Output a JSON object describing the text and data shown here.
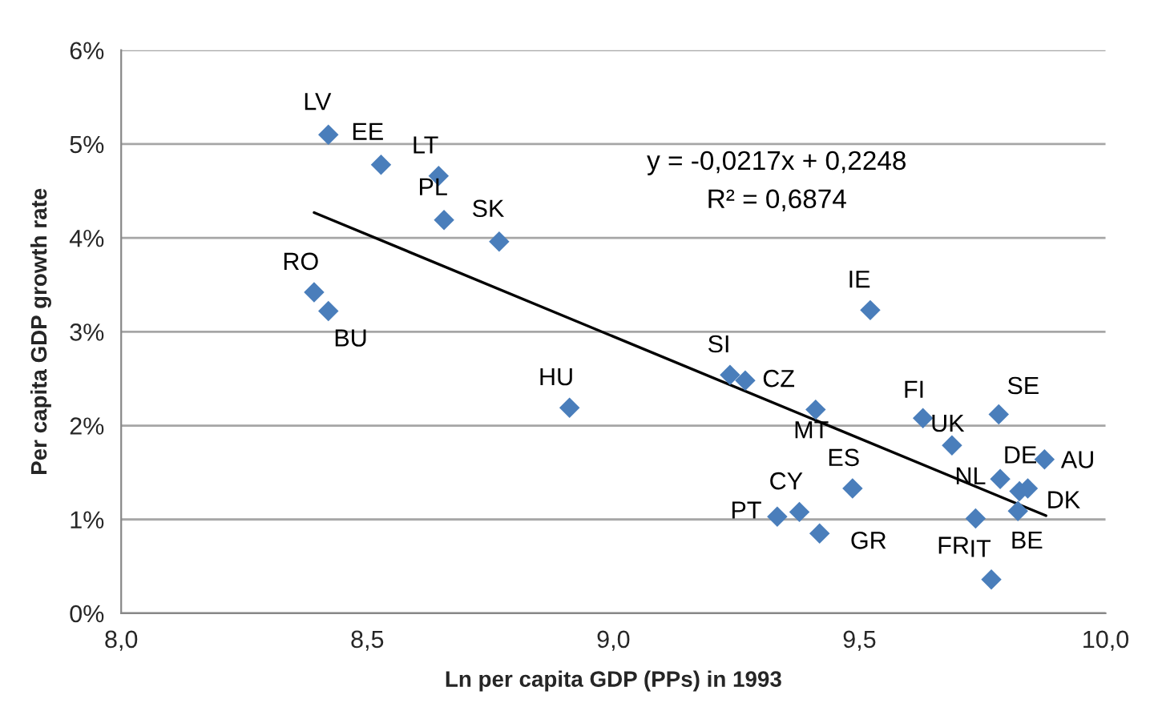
{
  "chart_data": {
    "type": "scatter",
    "xlabel": "Ln per capita GDP (PPs) in 1993",
    "ylabel": "Per capita GDP growth rate",
    "xlim": [
      8.0,
      10.0
    ],
    "xticks": [
      {
        "value": 8.0,
        "label": "8,0"
      },
      {
        "value": 8.5,
        "label": "8,5"
      },
      {
        "value": 9.0,
        "label": "9,0"
      },
      {
        "value": 9.5,
        "label": "9,5"
      },
      {
        "value": 10.0,
        "label": "10,0"
      }
    ],
    "ylim": [
      0,
      6
    ],
    "yticks": [
      {
        "value": 0,
        "label": "0%"
      },
      {
        "value": 1,
        "label": "1%"
      },
      {
        "value": 2,
        "label": "2%"
      },
      {
        "value": 3,
        "label": "3%"
      },
      {
        "value": 4,
        "label": "4%"
      },
      {
        "value": 5,
        "label": "5%"
      },
      {
        "value": 6,
        "label": "6%"
      }
    ],
    "grid": "y",
    "legend": false,
    "marker": "diamond",
    "annotations": [
      "y = -0,0217x + 0,2248",
      "R² = 0,6874"
    ],
    "series": [
      {
        "color": "#4a7ebb",
        "x": [
          8.421,
          8.528,
          8.645,
          8.656,
          8.768,
          8.392,
          8.421,
          8.911,
          9.237,
          9.268,
          9.411,
          9.522,
          9.629,
          9.688,
          9.783,
          9.876,
          9.786,
          9.825,
          9.842,
          9.822,
          9.736,
          9.768,
          9.486,
          9.378,
          9.333,
          9.419
        ],
        "values": [
          5.1,
          4.78,
          4.66,
          4.19,
          3.96,
          3.42,
          3.22,
          2.19,
          2.54,
          2.48,
          2.17,
          3.23,
          2.08,
          1.79,
          2.12,
          1.64,
          1.43,
          1.3,
          1.33,
          1.09,
          1.01,
          0.36,
          1.33,
          1.08,
          1.03,
          0.85
        ],
        "value_labels": [
          "LV",
          "EE",
          "LT",
          "PL",
          "SK",
          "RO",
          "BU",
          "HU",
          "SI",
          "CZ",
          "MT",
          "IE",
          "FI",
          "UK",
          "SE",
          "AU",
          "DE",
          "NL",
          "DK",
          "BE",
          "FR",
          "IT",
          "ES",
          "CY",
          "PT",
          "GR"
        ]
      },
      {
        "type": "line",
        "color": "#000000",
        "line_style": "solid",
        "marker": "none",
        "x": [
          8.392,
          9.879
        ],
        "values": [
          4.27,
          1.04
        ]
      }
    ]
  }
}
